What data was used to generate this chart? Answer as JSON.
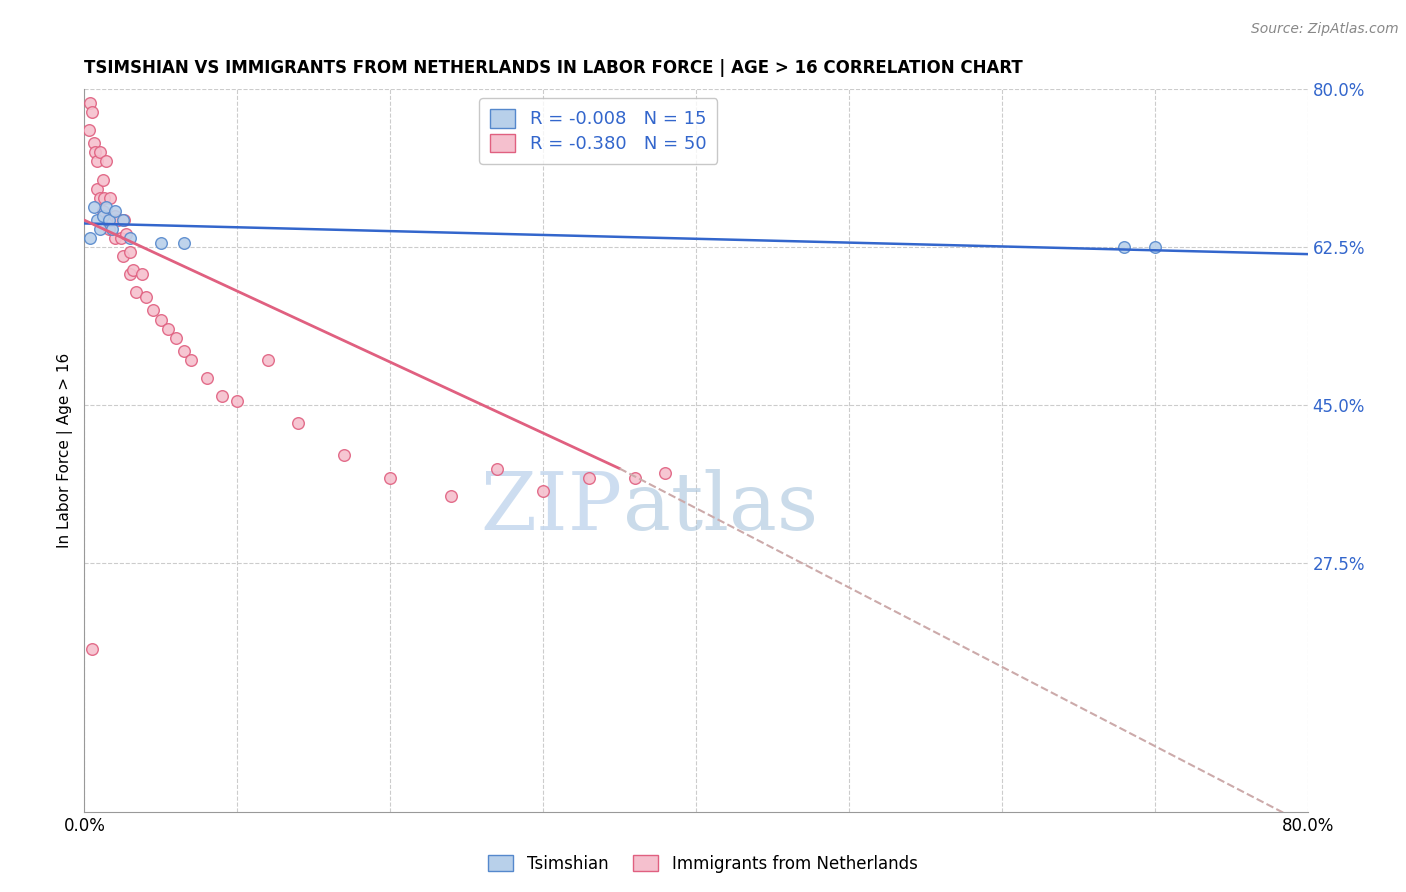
{
  "title": "TSIMSHIAN VS IMMIGRANTS FROM NETHERLANDS IN LABOR FORCE | AGE > 16 CORRELATION CHART",
  "source_text": "Source: ZipAtlas.com",
  "ylabel": "In Labor Force | Age > 16",
  "xlim": [
    0.0,
    0.8
  ],
  "ylim": [
    0.0,
    0.8
  ],
  "ytick_positions": [
    0.275,
    0.45,
    0.625,
    0.8
  ],
  "ytick_labels": [
    "27.5%",
    "45.0%",
    "62.5%",
    "80.0%"
  ],
  "grid_color": "#cccccc",
  "tsimshian_color": "#b8d0ea",
  "tsimshian_edge_color": "#5588cc",
  "netherlands_color": "#f5c0ce",
  "netherlands_edge_color": "#e06080",
  "tsimshian_R": "-0.008",
  "tsimshian_N": "15",
  "netherlands_R": "-0.380",
  "netherlands_N": "50",
  "tsimshian_line_color": "#3366cc",
  "netherlands_line_color": "#e06080",
  "netherlands_line_dash_color": "#ccaaaa",
  "background_color": "white",
  "marker_size": 70,
  "watermark_zip": "ZIP",
  "watermark_atlas": "atlas",
  "tsimshian_scatter_x": [
    0.004,
    0.006,
    0.008,
    0.01,
    0.012,
    0.014,
    0.016,
    0.018,
    0.02,
    0.025,
    0.03,
    0.05,
    0.065,
    0.68,
    0.7
  ],
  "tsimshian_scatter_y": [
    0.635,
    0.67,
    0.655,
    0.645,
    0.66,
    0.67,
    0.655,
    0.645,
    0.665,
    0.655,
    0.635,
    0.63,
    0.63,
    0.625,
    0.625
  ],
  "netherlands_scatter_x": [
    0.003,
    0.004,
    0.005,
    0.006,
    0.007,
    0.008,
    0.008,
    0.01,
    0.01,
    0.012,
    0.012,
    0.013,
    0.014,
    0.015,
    0.016,
    0.017,
    0.018,
    0.02,
    0.02,
    0.022,
    0.024,
    0.025,
    0.026,
    0.027,
    0.03,
    0.03,
    0.032,
    0.034,
    0.038,
    0.04,
    0.045,
    0.05,
    0.055,
    0.06,
    0.065,
    0.07,
    0.08,
    0.09,
    0.1,
    0.12,
    0.14,
    0.17,
    0.2,
    0.24,
    0.27,
    0.3,
    0.33,
    0.36,
    0.38,
    0.005
  ],
  "netherlands_scatter_y": [
    0.755,
    0.785,
    0.775,
    0.74,
    0.73,
    0.69,
    0.72,
    0.73,
    0.68,
    0.665,
    0.7,
    0.68,
    0.72,
    0.655,
    0.645,
    0.68,
    0.655,
    0.635,
    0.66,
    0.655,
    0.635,
    0.615,
    0.655,
    0.64,
    0.595,
    0.62,
    0.6,
    0.575,
    0.595,
    0.57,
    0.555,
    0.545,
    0.535,
    0.525,
    0.51,
    0.5,
    0.48,
    0.46,
    0.455,
    0.5,
    0.43,
    0.395,
    0.37,
    0.35,
    0.38,
    0.355,
    0.37,
    0.37,
    0.375,
    0.18
  ],
  "neth_line_x_start": 0.0,
  "neth_line_x_solid_end": 0.35,
  "neth_line_x_end": 0.8,
  "neth_line_y_start": 0.655,
  "neth_line_y_solid_end": 0.38,
  "neth_line_y_end": -0.015
}
